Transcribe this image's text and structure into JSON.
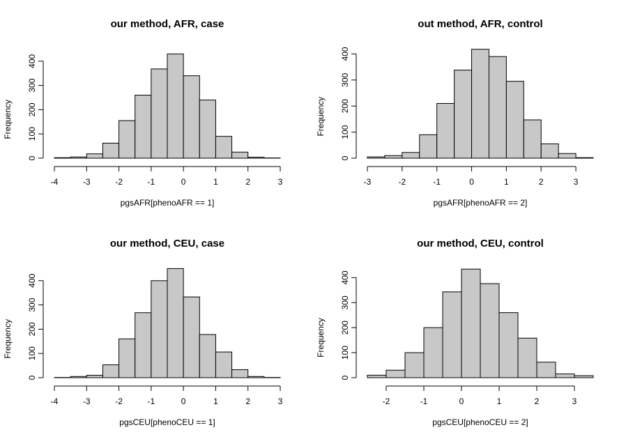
{
  "chart_data": [
    {
      "type": "histogram",
      "title": "our method, AFR, case",
      "xlabel": "pgsAFR[phenoAFR == 1]",
      "ylabel": "Frequency",
      "bin_edges": [
        -4,
        -3.5,
        -3,
        -2.5,
        -2,
        -1.5,
        -1,
        -0.5,
        0,
        0.5,
        1,
        1.5,
        2,
        2.5,
        3
      ],
      "values": [
        2,
        5,
        18,
        62,
        155,
        260,
        368,
        430,
        340,
        240,
        90,
        25,
        4,
        1
      ],
      "xticks": [
        -4,
        -3,
        -2,
        -1,
        0,
        1,
        2,
        3
      ],
      "xlim": [
        -4,
        3
      ],
      "yticks": [
        0,
        100,
        200,
        300,
        400
      ],
      "ylim": [
        0,
        430
      ],
      "bar_color": "#c8c8c8"
    },
    {
      "type": "histogram",
      "title": "out method, AFR, control",
      "xlabel": "pgsAFR[phenoAFR == 2]",
      "ylabel": "Frequency",
      "bin_edges": [
        -3,
        -2.5,
        -2,
        -1.5,
        -1,
        -0.5,
        0,
        0.5,
        1,
        1.5,
        2,
        2.5,
        3,
        3.5
      ],
      "values": [
        5,
        10,
        22,
        90,
        210,
        338,
        418,
        390,
        295,
        147,
        55,
        18,
        2
      ],
      "xticks": [
        -3,
        -2,
        -1,
        0,
        1,
        2,
        3
      ],
      "xlim": [
        -3,
        3.5
      ],
      "yticks": [
        0,
        100,
        200,
        300,
        400
      ],
      "ylim": [
        0,
        418
      ],
      "bar_color": "#c8c8c8"
    },
    {
      "type": "histogram",
      "title": "our method, CEU, case",
      "xlabel": "pgsCEU[phenoCEU == 1]",
      "ylabel": "Frequency",
      "bin_edges": [
        -4,
        -3.5,
        -3,
        -2.5,
        -2,
        -1.5,
        -1,
        -0.5,
        0,
        0.5,
        1,
        1.5,
        2,
        2.5,
        3
      ],
      "values": [
        1,
        5,
        10,
        53,
        160,
        268,
        400,
        450,
        333,
        178,
        106,
        33,
        5,
        1
      ],
      "xticks": [
        -4,
        -3,
        -2,
        -1,
        0,
        1,
        2,
        3
      ],
      "xlim": [
        -4,
        3
      ],
      "yticks": [
        0,
        100,
        200,
        300,
        400
      ],
      "ylim": [
        0,
        450
      ],
      "bar_color": "#c8c8c8"
    },
    {
      "type": "histogram",
      "title": "our method, CEU, control",
      "xlabel": "pgsCEU[phenoCEU == 2]",
      "ylabel": "Frequency",
      "bin_edges": [
        -2.5,
        -2,
        -1.5,
        -1,
        -0.5,
        0,
        0.5,
        1,
        1.5,
        2,
        2.5,
        3,
        3.5
      ],
      "values": [
        10,
        30,
        100,
        200,
        343,
        434,
        376,
        260,
        158,
        62,
        15,
        8
      ],
      "xticks": [
        -2,
        -1,
        0,
        1,
        2,
        3
      ],
      "xlim": [
        -2.5,
        3.5
      ],
      "yticks": [
        0,
        100,
        200,
        300,
        400
      ],
      "ylim": [
        0,
        434
      ],
      "bar_color": "#c8c8c8"
    }
  ]
}
